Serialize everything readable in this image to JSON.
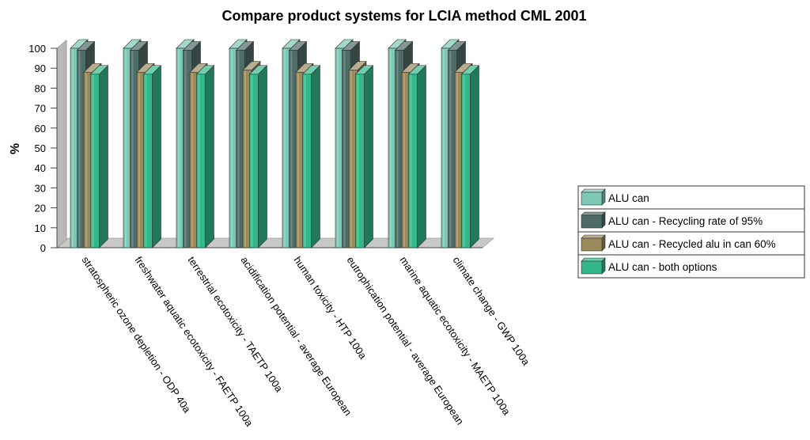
{
  "chart_data": {
    "type": "bar",
    "title": "Compare product systems for LCIA method CML 2001",
    "xlabel": "",
    "ylabel": "%",
    "ylim": [
      0,
      100
    ],
    "yticks": [
      0,
      10,
      20,
      30,
      40,
      50,
      60,
      70,
      80,
      90,
      100
    ],
    "grid": false,
    "legend_position": "right",
    "categories": [
      "stratospheric ozone depletion - ODP 40a",
      "freshwater aquatic ecotoxicity - FAETP 100a",
      "terrestrial ecotoxicity - TAETP 100a",
      "acidification potential - average European",
      "human toxicity - HTP 100a",
      "eutrophication potential - average European",
      "marine aquatic ecotoxicity - MAETP 100a",
      "climate change - GWP 100a"
    ],
    "series": [
      {
        "name": "ALU can",
        "color": "#7cc8b4",
        "values": [
          100,
          100,
          100,
          100,
          100,
          100,
          100,
          100
        ]
      },
      {
        "name": "ALU can - Recycling rate of 95%",
        "color": "#4e6c68",
        "values": [
          99,
          99,
          99,
          99,
          99,
          99,
          99,
          99
        ]
      },
      {
        "name": "ALU can - Recycled alu in can 60%",
        "color": "#9a8a5a",
        "values": [
          88,
          88,
          88,
          89,
          88,
          89,
          88,
          88
        ]
      },
      {
        "name": "ALU can - both options",
        "color": "#33b88a",
        "values": [
          87,
          87,
          87,
          87,
          87,
          87,
          87,
          87
        ]
      }
    ]
  }
}
